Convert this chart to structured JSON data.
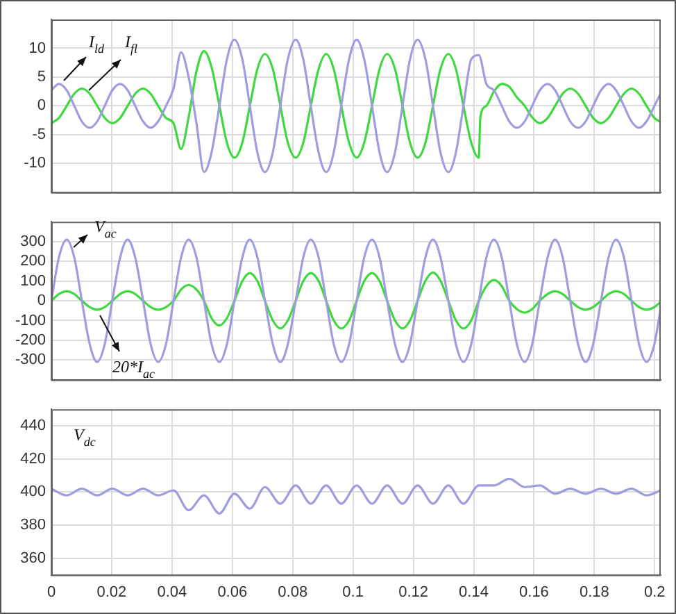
{
  "chart_data": [
    {
      "type": "line",
      "xlim": [
        0,
        0.202
      ],
      "ylim": [
        -15,
        15
      ],
      "xticks": [
        0,
        0.02,
        0.04,
        0.06,
        0.08,
        0.1,
        0.12,
        0.14,
        0.16,
        0.18,
        0.2
      ],
      "yticks": [
        -10,
        -5,
        0,
        5,
        10
      ],
      "grid": true,
      "tick_labels": "y",
      "marker": "none",
      "line_style": "solid",
      "annotations": [
        "I$_{ld}$",
        "I$_{fl}$"
      ],
      "x": [
        0,
        0.0025,
        0.0051,
        0.0076,
        0.0101,
        0.0127,
        0.0152,
        0.0177,
        0.0202,
        0.0228,
        0.0253,
        0.0278,
        0.0304,
        0.0329,
        0.0354,
        0.038,
        0.0405,
        0.043,
        0.0455,
        0.0481,
        0.0506,
        0.0531,
        0.0557,
        0.0582,
        0.0607,
        0.0633,
        0.0658,
        0.0683,
        0.0708,
        0.0734,
        0.0759,
        0.0784,
        0.081,
        0.0835,
        0.086,
        0.0886,
        0.0911,
        0.0936,
        0.0961,
        0.0987,
        0.1012,
        0.1037,
        0.1063,
        0.1088,
        0.1113,
        0.1139,
        0.1164,
        0.1189,
        0.1214,
        0.124,
        0.1265,
        0.129,
        0.1316,
        0.1341,
        0.1366,
        0.1392,
        0.1417,
        0.1442,
        0.1467,
        0.1493,
        0.1518,
        0.1543,
        0.1569,
        0.1594,
        0.1619,
        0.1645,
        0.167,
        0.1695,
        0.172,
        0.1746,
        0.1771,
        0.1796,
        0.1822,
        0.1847,
        0.1872,
        0.1898,
        0.1923,
        0.1948,
        0.1973,
        0.1999,
        0.202
      ],
      "series": [
        {
          "color": "#9d9de0",
          "values": [
            2.7,
            3.8,
            2.7,
            0,
            -2.7,
            -3.8,
            -2.7,
            0,
            2.7,
            3.8,
            2.7,
            0,
            -2.7,
            -3.8,
            -2.7,
            0,
            3,
            9.3,
            5,
            -3,
            -11.5,
            -8.1,
            0,
            8.1,
            11.5,
            8.1,
            0,
            -8.1,
            -11.5,
            -8.1,
            0,
            8.1,
            11.5,
            8.1,
            0,
            -8.1,
            -11.5,
            -8.1,
            0,
            8.1,
            11.5,
            8.1,
            0,
            -8.1,
            -11.5,
            -8.1,
            0,
            8.1,
            11.5,
            8.1,
            0,
            -8.1,
            -11.5,
            -8.1,
            0,
            8.1,
            8.8,
            3.8,
            2.7,
            0,
            -2.7,
            -3.8,
            -2.7,
            0,
            2.7,
            3.8,
            2.7,
            0,
            -2.7,
            -3.8,
            -2.7,
            0,
            2.7,
            3.8,
            2.7,
            0,
            -2.7,
            -3.8,
            -2.7,
            0,
            2.2
          ]
        },
        {
          "color": "#3fd83f",
          "x": [
            0,
            0.0025,
            0.0051,
            0.0076,
            0.0101,
            0.0127,
            0.0152,
            0.0177,
            0.0202,
            0.0228,
            0.0253,
            0.0278,
            0.0304,
            0.0329,
            0.0354,
            0.038,
            0.0405,
            0.043,
            0.0455,
            0.0481,
            0.0506,
            0.0531,
            0.0557,
            0.0582,
            0.0607,
            0.0633,
            0.0658,
            0.0683,
            0.0708,
            0.0734,
            0.0759,
            0.0784,
            0.081,
            0.0835,
            0.086,
            0.0886,
            0.0911,
            0.0936,
            0.0961,
            0.0987,
            0.1012,
            0.1037,
            0.1063,
            0.1088,
            0.1113,
            0.1139,
            0.1164,
            0.1189,
            0.1214,
            0.124,
            0.1265,
            0.129,
            0.1316,
            0.1341,
            0.1366,
            0.1392,
            0.1417,
            0.1422,
            0.1442,
            0.1467,
            0.1493,
            0.1518,
            0.1543,
            0.1569,
            0.1594,
            0.1619,
            0.1645,
            0.167,
            0.1695,
            0.172,
            0.1746,
            0.1771,
            0.1796,
            0.1822,
            0.1847,
            0.1872,
            0.1898,
            0.1923,
            0.1948,
            0.1973,
            0.1999,
            0.202
          ],
          "values": [
            -3,
            -2.1,
            0,
            2.1,
            3,
            2.1,
            0,
            -2.1,
            -3,
            -2.1,
            0,
            2.1,
            3,
            2.1,
            0,
            -2.1,
            -3,
            -7.5,
            -2,
            6,
            9.5,
            6.7,
            0,
            -6.4,
            -9,
            -6.4,
            0,
            6.4,
            9,
            6.4,
            0,
            -6.4,
            -9,
            -6.4,
            0,
            6.4,
            9,
            6.4,
            0,
            -6.4,
            -9,
            -6.4,
            0,
            6.4,
            9,
            6.4,
            0,
            -6.4,
            -9,
            -6.4,
            0,
            6.4,
            9,
            6.4,
            0,
            -6.4,
            -9,
            -2,
            0,
            2.5,
            3.8,
            3.3,
            1.5,
            0,
            -2,
            -3,
            -2.1,
            0,
            2.1,
            3,
            2.1,
            0,
            -2.1,
            -3,
            -2.1,
            0,
            2.1,
            3,
            2.1,
            0,
            -2.1,
            -2.8
          ]
        }
      ]
    },
    {
      "type": "line",
      "xlim": [
        0,
        0.202
      ],
      "ylim": [
        -400,
        400
      ],
      "xticks": [
        0,
        0.02,
        0.04,
        0.06,
        0.08,
        0.1,
        0.12,
        0.14,
        0.16,
        0.18,
        0.2
      ],
      "yticks": [
        -300,
        -200,
        -100,
        0,
        100,
        200,
        300
      ],
      "grid": true,
      "tick_labels": "y",
      "marker": "none",
      "line_style": "solid",
      "annotations": [
        "V$_{ac}$",
        "20*I$_{ac}$"
      ],
      "x": [
        0,
        0.0025,
        0.0051,
        0.0076,
        0.0101,
        0.0127,
        0.0152,
        0.0177,
        0.0202,
        0.0228,
        0.0253,
        0.0278,
        0.0304,
        0.0329,
        0.0354,
        0.038,
        0.0405,
        0.043,
        0.0455,
        0.0481,
        0.0506,
        0.0531,
        0.0557,
        0.0582,
        0.0607,
        0.0633,
        0.0658,
        0.0683,
        0.0708,
        0.0734,
        0.0759,
        0.0784,
        0.081,
        0.0835,
        0.086,
        0.0886,
        0.0911,
        0.0936,
        0.0961,
        0.0987,
        0.1012,
        0.1037,
        0.1063,
        0.1088,
        0.1113,
        0.1139,
        0.1164,
        0.1189,
        0.1214,
        0.124,
        0.1265,
        0.129,
        0.1316,
        0.1341,
        0.1366,
        0.1392,
        0.1417,
        0.1442,
        0.1467,
        0.1493,
        0.1518,
        0.1543,
        0.1569,
        0.1594,
        0.1619,
        0.1645,
        0.167,
        0.1695,
        0.172,
        0.1746,
        0.1771,
        0.1796,
        0.1822,
        0.1847,
        0.1872,
        0.1898,
        0.1923,
        0.1948,
        0.1973,
        0.1999,
        0.202
      ],
      "series": [
        {
          "color": "#9d9de0",
          "values": [
            0,
            219,
            310,
            219,
            0,
            -219,
            -310,
            -219,
            0,
            219,
            310,
            219,
            0,
            -219,
            -310,
            -219,
            0,
            219,
            310,
            219,
            0,
            -219,
            -310,
            -219,
            0,
            219,
            310,
            219,
            0,
            -219,
            -310,
            -219,
            0,
            219,
            310,
            219,
            0,
            -219,
            -310,
            -219,
            0,
            219,
            310,
            219,
            0,
            -219,
            -310,
            -219,
            0,
            219,
            310,
            219,
            0,
            -219,
            -310,
            -219,
            0,
            219,
            310,
            219,
            0,
            -219,
            -310,
            -219,
            0,
            219,
            310,
            219,
            0,
            -219,
            -310,
            -219,
            0,
            219,
            310,
            219,
            0,
            -219,
            -310,
            -219,
            -35
          ]
        },
        {
          "color": "#3fd83f",
          "values": [
            0,
            34,
            48,
            34,
            0,
            -32,
            -45,
            -32,
            0,
            34,
            48,
            34,
            0,
            -32,
            -45,
            -32,
            0,
            57,
            80,
            57,
            0,
            -88,
            -125,
            -88,
            0,
            99,
            140,
            99,
            0,
            -99,
            -140,
            -99,
            0,
            99,
            140,
            99,
            0,
            -99,
            -140,
            -99,
            0,
            99,
            140,
            99,
            0,
            -99,
            -140,
            -99,
            0,
            101,
            143,
            101,
            0,
            -99,
            -140,
            -99,
            0,
            74,
            105,
            74,
            0,
            -42,
            -60,
            -42,
            0,
            34,
            48,
            34,
            0,
            -32,
            -45,
            -32,
            0,
            34,
            48,
            34,
            0,
            -32,
            -45,
            -32,
            -5
          ]
        }
      ]
    },
    {
      "type": "line",
      "xlim": [
        0,
        0.202
      ],
      "ylim": [
        350,
        450
      ],
      "xticks": [
        0,
        0.02,
        0.04,
        0.06,
        0.08,
        0.1,
        0.12,
        0.14,
        0.16,
        0.18,
        0.2
      ],
      "yticks": [
        360,
        380,
        400,
        420,
        440
      ],
      "grid": true,
      "marker": "none",
      "line_style": "solid",
      "annotations": [
        "V$_{dc}$"
      ],
      "x": [
        0,
        0.0051,
        0.0101,
        0.0152,
        0.0202,
        0.0253,
        0.0304,
        0.0354,
        0.0405,
        0.0455,
        0.0506,
        0.0557,
        0.0607,
        0.0658,
        0.0708,
        0.0759,
        0.081,
        0.086,
        0.0911,
        0.0961,
        0.1012,
        0.1063,
        0.1113,
        0.1164,
        0.1214,
        0.1265,
        0.1316,
        0.1366,
        0.1417,
        0.1467,
        0.1518,
        0.1569,
        0.1619,
        0.167,
        0.172,
        0.1771,
        0.1822,
        0.1872,
        0.1923,
        0.1973,
        0.202
      ],
      "series": [
        {
          "color": "#9d9de0",
          "values": [
            402,
            398,
            402,
            398,
            402,
            398,
            402,
            398,
            401,
            389,
            398,
            387,
            399,
            390,
            403,
            393,
            404,
            393,
            404,
            393,
            404,
            393,
            404,
            393,
            404,
            393,
            404,
            393,
            404,
            404,
            408,
            403,
            404,
            399,
            402,
            399,
            402,
            399,
            402,
            398,
            401
          ]
        }
      ]
    }
  ]
}
